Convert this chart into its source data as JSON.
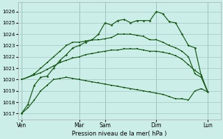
{
  "background_color": "#cceee8",
  "grid_color": "#aacccc",
  "line_color": "#1a5c1a",
  "ylim": [
    1016.5,
    1026.8
  ],
  "ytick_labels": [
    "1017",
    "1018",
    "1019",
    "1020",
    "1021",
    "1022",
    "1023",
    "1024",
    "1025",
    "1026"
  ],
  "ytick_vals": [
    1017,
    1018,
    1019,
    1020,
    1021,
    1022,
    1023,
    1024,
    1025,
    1026
  ],
  "xlabel": "Pression niveau de la mer( hPa )",
  "day_labels": [
    "Ven",
    "Mar",
    "Sam",
    "Dim",
    "Lun"
  ],
  "day_positions": [
    0,
    9,
    13,
    21,
    29
  ],
  "xlim": [
    -0.5,
    31
  ],
  "s1_x": [
    0,
    1,
    2,
    3,
    4,
    5,
    6,
    7,
    8,
    9,
    10,
    11,
    12,
    13,
    14,
    15,
    16,
    17,
    18,
    19,
    20,
    21,
    22,
    23,
    24,
    25,
    26,
    27,
    28,
    29
  ],
  "s1_y": [
    1017.0,
    1017.5,
    1018.2,
    1019.0,
    1019.5,
    1020.0,
    1020.1,
    1020.2,
    1020.1,
    1020.0,
    1019.9,
    1019.8,
    1019.7,
    1019.6,
    1019.5,
    1019.4,
    1019.3,
    1019.2,
    1019.1,
    1019.0,
    1018.9,
    1018.8,
    1018.7,
    1018.5,
    1018.3,
    1018.3,
    1018.2,
    1019.0,
    1019.2,
    1018.9
  ],
  "s2_x": [
    0,
    1,
    2,
    3,
    4,
    5,
    6,
    7,
    8,
    9,
    10,
    11,
    12,
    13,
    14,
    15,
    16,
    17,
    18,
    19,
    20,
    21,
    22,
    23,
    24,
    25,
    26,
    27,
    28,
    29
  ],
  "s2_y": [
    1020.0,
    1020.2,
    1020.4,
    1020.6,
    1020.9,
    1021.2,
    1021.5,
    1021.7,
    1021.9,
    1022.0,
    1022.2,
    1022.3,
    1022.4,
    1022.5,
    1022.6,
    1022.6,
    1022.7,
    1022.7,
    1022.7,
    1022.6,
    1022.5,
    1022.5,
    1022.4,
    1022.3,
    1022.1,
    1021.8,
    1021.3,
    1020.8,
    1020.4,
    1018.9
  ],
  "s3_x": [
    0,
    1,
    2,
    3,
    4,
    5,
    6,
    7,
    8,
    9,
    10,
    11,
    12,
    13,
    14,
    15,
    16,
    17,
    18,
    19,
    20,
    21,
    22,
    23,
    24,
    25,
    26,
    27,
    28,
    29
  ],
  "s3_y": [
    1020.0,
    1020.2,
    1020.5,
    1021.0,
    1021.5,
    1022.0,
    1022.5,
    1023.0,
    1023.3,
    1023.3,
    1023.4,
    1023.5,
    1023.5,
    1023.6,
    1023.7,
    1024.0,
    1024.0,
    1024.0,
    1023.9,
    1023.8,
    1023.5,
    1023.5,
    1023.3,
    1023.0,
    1022.8,
    1022.5,
    1022.0,
    1020.5,
    1020.2,
    1018.9
  ],
  "s4_x": [
    0,
    1,
    2,
    3,
    4,
    5,
    6,
    7,
    8,
    9,
    10,
    11,
    12,
    13,
    14,
    15,
    16,
    17,
    18,
    19,
    20,
    21,
    22,
    23,
    24,
    25,
    26,
    27,
    28,
    29
  ],
  "s4_y": [
    1017.0,
    1017.8,
    1019.5,
    1020.2,
    1020.3,
    1021.0,
    1021.7,
    1022.2,
    1022.8,
    1023.0,
    1023.3,
    1023.5,
    1024.0,
    1025.0,
    1024.8,
    1025.2,
    1025.3,
    1025.0,
    1025.2,
    1025.2,
    1025.2,
    1026.0,
    1025.8,
    1025.1,
    1025.0,
    1024.0,
    1023.0,
    1022.8,
    1020.3,
    1018.9
  ]
}
